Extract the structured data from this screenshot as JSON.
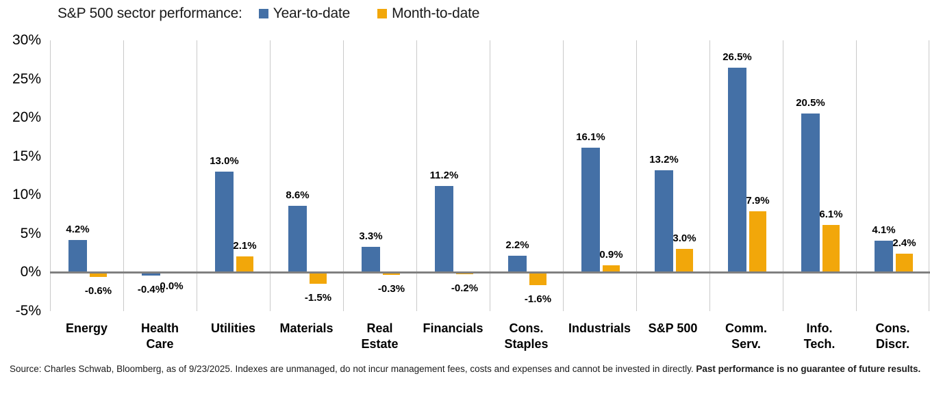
{
  "chart_data": {
    "type": "bar",
    "title": "S&P 500 sector performance:",
    "legend": [
      {
        "label": "Year-to-date",
        "color": "#4470A6"
      },
      {
        "label": "Month-to-date",
        "color": "#F2A70A"
      }
    ],
    "legend_position": "top",
    "categories": [
      "Energy",
      "Health\nCare",
      "Utilities",
      "Materials",
      "Real\nEstate",
      "Financials",
      "Cons.\nStaples",
      "Industrials",
      "S&P 500",
      "Comm.\nServ.",
      "Info.\nTech.",
      "Cons.\nDiscr."
    ],
    "series": [
      {
        "name": "Year-to-date",
        "color": "#4470A6",
        "values": [
          4.2,
          -0.4,
          13.0,
          8.6,
          3.3,
          11.2,
          2.2,
          16.1,
          13.2,
          26.5,
          20.5,
          4.1
        ]
      },
      {
        "name": "Month-to-date",
        "color": "#F2A70A",
        "values": [
          -0.6,
          0.0,
          2.1,
          -1.5,
          -0.3,
          -0.2,
          -1.6,
          0.9,
          3.0,
          7.9,
          6.1,
          2.4
        ]
      }
    ],
    "value_label_format": "0.0%",
    "ylim": [
      -5,
      30
    ],
    "yticks": [
      {
        "value": 30,
        "label": "30%"
      },
      {
        "value": 25,
        "label": "25%"
      },
      {
        "value": 20,
        "label": "20%"
      },
      {
        "value": 15,
        "label": "15%"
      },
      {
        "value": 10,
        "label": "10%"
      },
      {
        "value": 5,
        "label": "5%"
      },
      {
        "value": 0,
        "label": "0%"
      },
      {
        "value": -5,
        "label": "-5%"
      }
    ],
    "grid": "vertical-only",
    "gridline_color": "#c9c9c9",
    "zero_line_color": "#808080"
  },
  "footnote": {
    "regular": "Source: Charles Schwab, Bloomberg, as of 9/23/2025.  Indexes are unmanaged, do not incur management fees, costs and expenses and cannot be invested in directly. ",
    "bold": "Past performance is no guarantee of future results."
  }
}
